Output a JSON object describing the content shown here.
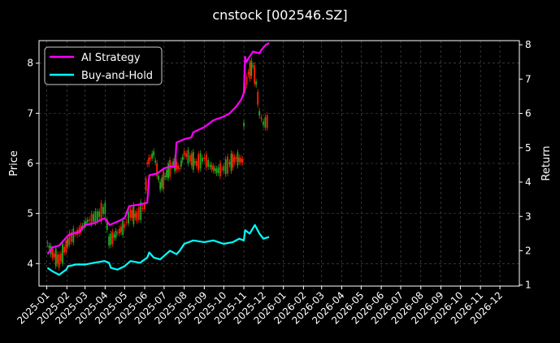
{
  "chart_data": {
    "type": "line",
    "title": "cnstock [002546.SZ]",
    "xlabel": "",
    "ylabel": "Price",
    "y2label": "Return",
    "ylim": [
      3.55,
      8.45
    ],
    "y2lim": [
      0.97,
      8.12
    ],
    "y_ticks": [
      4,
      5,
      6,
      7,
      8
    ],
    "y2_ticks": [
      1,
      2,
      3,
      4,
      5,
      6,
      7,
      8
    ],
    "x_range": [
      "2024-12-20",
      "2026-12-31"
    ],
    "x_ticks": [
      "2025-01",
      "2025-02",
      "2025-03",
      "2025-04",
      "2025-05",
      "2025-06",
      "2025-07",
      "2025-08",
      "2025-09",
      "2025-10",
      "2025-11",
      "2025-12",
      "2026-01",
      "2026-02",
      "2026-03",
      "2026-04",
      "2026-05",
      "2026-06",
      "2026-07",
      "2026-08",
      "2026-09",
      "2026-10",
      "2026-11",
      "2026-12"
    ],
    "grid": true,
    "legend_position": "top-left",
    "background": "#000000",
    "colors": {
      "ai": "#ff00ff",
      "bh": "#00ffff",
      "up": "#22aa22",
      "down": "#ff2200",
      "grid": "#555555"
    },
    "series": [
      {
        "name": "AI Strategy",
        "axis": "right",
        "x": [
          "2025-01-02",
          "2025-01-10",
          "2025-01-20",
          "2025-02-03",
          "2025-02-10",
          "2025-02-20",
          "2025-03-01",
          "2025-03-15",
          "2025-03-31",
          "2025-04-08",
          "2025-04-20",
          "2025-05-01",
          "2025-05-08",
          "2025-05-25",
          "2025-06-05",
          "2025-06-08",
          "2025-06-20",
          "2025-07-01",
          "2025-07-10",
          "2025-07-18",
          "2025-07-20",
          "2025-08-01",
          "2025-08-12",
          "2025-08-15",
          "2025-09-01",
          "2025-09-08",
          "2025-09-15",
          "2025-09-30",
          "2025-10-10",
          "2025-10-15",
          "2025-10-20",
          "2025-10-28",
          "2025-11-01",
          "2025-11-03",
          "2025-11-05",
          "2025-11-08",
          "2025-11-15",
          "2025-11-25",
          "2025-11-28",
          "2025-12-05",
          "2025-12-10"
        ],
        "values": [
          1.9,
          2.1,
          2.15,
          2.45,
          2.5,
          2.55,
          2.75,
          2.8,
          2.95,
          2.75,
          2.85,
          2.95,
          3.3,
          3.35,
          3.4,
          4.2,
          4.25,
          4.4,
          4.45,
          4.45,
          5.15,
          5.25,
          5.3,
          5.45,
          5.6,
          5.7,
          5.8,
          5.9,
          6.0,
          6.1,
          6.2,
          6.4,
          6.6,
          7.65,
          7.5,
          7.6,
          7.8,
          7.75,
          7.85,
          8.0,
          8.05
        ]
      },
      {
        "name": "Buy-and-Hold",
        "axis": "right",
        "x": [
          "2025-01-02",
          "2025-01-10",
          "2025-01-20",
          "2025-01-31",
          "2025-02-03",
          "2025-02-15",
          "2025-03-01",
          "2025-03-15",
          "2025-03-31",
          "2025-04-07",
          "2025-04-10",
          "2025-04-20",
          "2025-05-01",
          "2025-05-10",
          "2025-05-25",
          "2025-06-05",
          "2025-06-08",
          "2025-06-15",
          "2025-06-25",
          "2025-07-01",
          "2025-07-10",
          "2025-07-20",
          "2025-07-25",
          "2025-08-01",
          "2025-08-15",
          "2025-09-01",
          "2025-09-15",
          "2025-10-01",
          "2025-10-15",
          "2025-10-25",
          "2025-11-01",
          "2025-11-03",
          "2025-11-10",
          "2025-11-18",
          "2025-11-25",
          "2025-12-01",
          "2025-12-10"
        ],
        "values": [
          1.5,
          1.4,
          1.3,
          1.45,
          1.55,
          1.6,
          1.6,
          1.65,
          1.7,
          1.65,
          1.5,
          1.45,
          1.55,
          1.7,
          1.65,
          1.8,
          1.95,
          1.8,
          1.75,
          1.85,
          2.0,
          1.9,
          2.0,
          2.2,
          2.3,
          2.25,
          2.3,
          2.2,
          2.25,
          2.35,
          2.3,
          2.6,
          2.5,
          2.75,
          2.5,
          2.35,
          2.4
        ]
      }
    ],
    "price": {
      "name": "Price",
      "axis": "left",
      "x": [
        "2025-01-02",
        "2025-01-10",
        "2025-01-20",
        "2025-02-05",
        "2025-02-20",
        "2025-03-05",
        "2025-03-20",
        "2025-04-01",
        "2025-04-07",
        "2025-04-15",
        "2025-05-01",
        "2025-05-10",
        "2025-05-20",
        "2025-06-01",
        "2025-06-05",
        "2025-06-15",
        "2025-06-25",
        "2025-07-05",
        "2025-07-15",
        "2025-07-25",
        "2025-08-01",
        "2025-08-10",
        "2025-08-20",
        "2025-09-01",
        "2025-09-10",
        "2025-09-20",
        "2025-10-01",
        "2025-10-10",
        "2025-10-20",
        "2025-10-30",
        "2025-11-03",
        "2025-11-08",
        "2025-11-15",
        "2025-11-20",
        "2025-11-25",
        "2025-12-01",
        "2025-12-10"
      ],
      "values": [
        4.4,
        4.2,
        4.05,
        4.5,
        4.65,
        4.85,
        4.95,
        5.1,
        4.45,
        4.55,
        4.75,
        5.0,
        4.95,
        5.15,
        6.0,
        6.2,
        5.55,
        5.8,
        6.0,
        5.9,
        6.2,
        6.1,
        6.0,
        6.1,
        5.95,
        5.85,
        5.9,
        6.0,
        6.1,
        6.05,
        7.5,
        7.8,
        7.95,
        7.6,
        7.0,
        6.8,
        6.85
      ]
    }
  },
  "legend": {
    "items": [
      "AI Strategy",
      "Buy-and-Hold"
    ]
  }
}
